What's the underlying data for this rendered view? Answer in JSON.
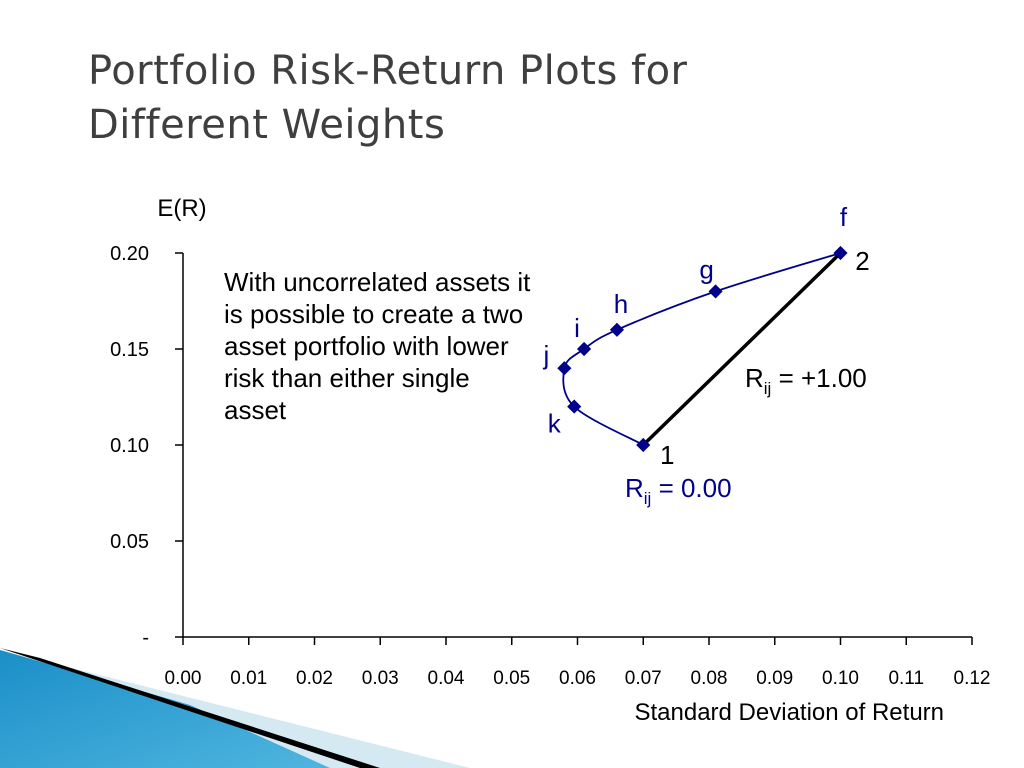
{
  "slide": {
    "title_line1": "Portfolio Risk-Return Plots for",
    "title_line2": "Different Weights"
  },
  "note": "With uncorrelated assets it is possible to create a two asset portfolio with lower risk than either single asset",
  "chart_data": {
    "type": "scatter",
    "title": "",
    "xlabel": "Standard Deviation of Return",
    "ylabel": "E(R)",
    "xlim": [
      0.0,
      0.12
    ],
    "ylim": [
      0.0,
      0.2
    ],
    "x_ticks": [
      "0.00",
      "0.01",
      "0.02",
      "0.03",
      "0.04",
      "0.05",
      "0.06",
      "0.07",
      "0.08",
      "0.09",
      "0.10",
      "0.11",
      "0.12"
    ],
    "y_ticks": [
      {
        "value": 0.0,
        "label": "-"
      },
      {
        "value": 0.05,
        "label": "0.05"
      },
      {
        "value": 0.1,
        "label": "0.10"
      },
      {
        "value": 0.15,
        "label": "0.15"
      },
      {
        "value": 0.2,
        "label": "0.20"
      }
    ],
    "grid": false,
    "series": [
      {
        "key": "r0",
        "color": "#00008b",
        "points": [
          {
            "label": "1",
            "x": 0.07,
            "y": 0.1
          },
          {
            "label": "k",
            "x": 0.0595,
            "y": 0.12
          },
          {
            "label": "j",
            "x": 0.058,
            "y": 0.14
          },
          {
            "label": "i",
            "x": 0.061,
            "y": 0.15
          },
          {
            "label": "h",
            "x": 0.066,
            "y": 0.16
          },
          {
            "label": "g",
            "x": 0.081,
            "y": 0.18
          },
          {
            "label": "f",
            "x": 0.1,
            "y": 0.2
          }
        ]
      },
      {
        "key": "r1",
        "color": "#000000",
        "points": [
          {
            "x": 0.07,
            "y": 0.1
          },
          {
            "x": 0.1,
            "y": 0.2
          }
        ]
      }
    ],
    "annotations": {
      "corr_pos": {
        "base": "R",
        "sub": "ij",
        "rest": " = +1.00"
      },
      "corr_zero": {
        "base": "R",
        "sub": "ij",
        "rest": " = 0.00"
      }
    }
  }
}
